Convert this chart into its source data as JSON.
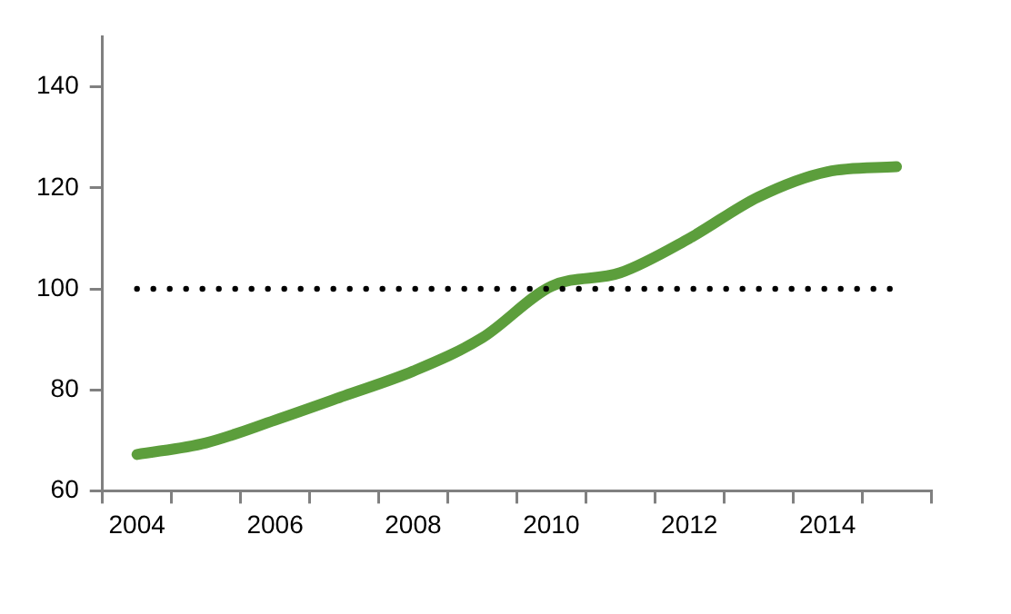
{
  "chart_data": {
    "type": "line",
    "categories": [
      "2004",
      null,
      "2006",
      null,
      "2008",
      null,
      "2010",
      null,
      "2012",
      null,
      "2014",
      null
    ],
    "series": [
      {
        "color": "#5c9e3c",
        "values": [
          67.2,
          69.5,
          74,
          78.8,
          83.7,
          90.3,
          100.5,
          103.2,
          110,
          118.2,
          123.2,
          124.2
        ]
      }
    ],
    "ylim": [
      60,
      150
    ],
    "yticks": [
      60,
      80,
      100,
      120,
      140
    ],
    "grid": false,
    "legend": false,
    "marker": "none",
    "line_style": "solid",
    "ref_lines": [
      {
        "axis": "y",
        "value": 100,
        "color": "#000000",
        "line_style": "dotted"
      }
    ]
  }
}
